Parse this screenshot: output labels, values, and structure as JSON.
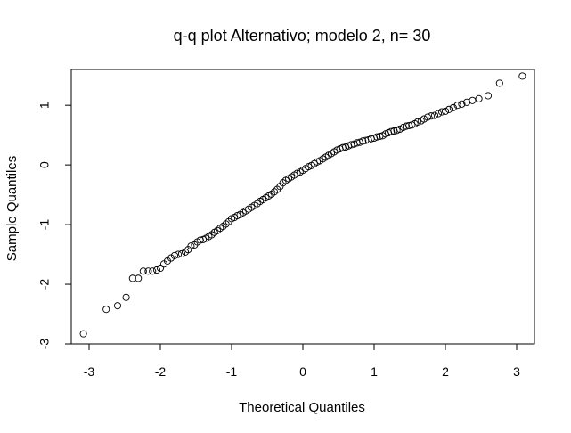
{
  "chart_data": {
    "type": "scatter",
    "title": "q-q plot Alternativo; modelo 2, n= 30",
    "xlabel": "Theoretical Quantiles",
    "ylabel": "Sample Quantiles",
    "xlim": [
      -3.25,
      3.25
    ],
    "ylim": [
      -3.0,
      1.6
    ],
    "xticks": [
      -3,
      -2,
      -1,
      0,
      1,
      2,
      3
    ],
    "yticks": [
      -3,
      -2,
      -1,
      0,
      1
    ],
    "xtick_labels": [
      "-3",
      "-2",
      "-1",
      "0",
      "1",
      "2",
      "3"
    ],
    "ytick_labels": [
      "-3",
      "-2",
      "-1",
      "0",
      "1"
    ],
    "grid": false,
    "marker": "open-circle",
    "points": [
      [
        -3.08,
        -2.83
      ],
      [
        -2.76,
        -2.42
      ],
      [
        -2.6,
        -2.36
      ],
      [
        -2.48,
        -2.22
      ],
      [
        -2.39,
        -1.9
      ],
      [
        -2.31,
        -1.9
      ],
      [
        -2.24,
        -1.78
      ],
      [
        -2.17,
        -1.78
      ],
      [
        -2.11,
        -1.78
      ],
      [
        -2.05,
        -1.76
      ],
      [
        -2.0,
        -1.73
      ],
      [
        -1.95,
        -1.66
      ],
      [
        -1.9,
        -1.61
      ],
      [
        -1.85,
        -1.56
      ],
      [
        -1.8,
        -1.52
      ],
      [
        -1.75,
        -1.5
      ],
      [
        -1.7,
        -1.49
      ],
      [
        -1.65,
        -1.46
      ],
      [
        -1.61,
        -1.42
      ],
      [
        -1.57,
        -1.36
      ],
      [
        -1.52,
        -1.34
      ],
      [
        -1.48,
        -1.29
      ],
      [
        -1.44,
        -1.26
      ],
      [
        -1.4,
        -1.25
      ],
      [
        -1.36,
        -1.23
      ],
      [
        -1.32,
        -1.2
      ],
      [
        -1.28,
        -1.17
      ],
      [
        -1.24,
        -1.13
      ],
      [
        -1.2,
        -1.1
      ],
      [
        -1.16,
        -1.06
      ],
      [
        -1.12,
        -1.03
      ],
      [
        -1.08,
        -0.99
      ],
      [
        -1.04,
        -0.95
      ],
      [
        -1.0,
        -0.9
      ],
      [
        -0.96,
        -0.88
      ],
      [
        -0.92,
        -0.85
      ],
      [
        -0.88,
        -0.83
      ],
      [
        -0.84,
        -0.8
      ],
      [
        -0.8,
        -0.77
      ],
      [
        -0.76,
        -0.74
      ],
      [
        -0.72,
        -0.71
      ],
      [
        -0.68,
        -0.68
      ],
      [
        -0.64,
        -0.65
      ],
      [
        -0.6,
        -0.61
      ],
      [
        -0.56,
        -0.58
      ],
      [
        -0.52,
        -0.55
      ],
      [
        -0.48,
        -0.52
      ],
      [
        -0.44,
        -0.49
      ],
      [
        -0.4,
        -0.45
      ],
      [
        -0.36,
        -0.41
      ],
      [
        -0.32,
        -0.36
      ],
      [
        -0.28,
        -0.3
      ],
      [
        -0.24,
        -0.26
      ],
      [
        -0.2,
        -0.23
      ],
      [
        -0.16,
        -0.2
      ],
      [
        -0.12,
        -0.17
      ],
      [
        -0.08,
        -0.14
      ],
      [
        -0.04,
        -0.12
      ],
      [
        0.0,
        -0.09
      ],
      [
        0.04,
        -0.06
      ],
      [
        0.08,
        -0.03
      ],
      [
        0.12,
        -0.01
      ],
      [
        0.16,
        0.02
      ],
      [
        0.2,
        0.05
      ],
      [
        0.24,
        0.07
      ],
      [
        0.28,
        0.1
      ],
      [
        0.32,
        0.13
      ],
      [
        0.36,
        0.16
      ],
      [
        0.4,
        0.19
      ],
      [
        0.44,
        0.22
      ],
      [
        0.48,
        0.25
      ],
      [
        0.52,
        0.27
      ],
      [
        0.56,
        0.29
      ],
      [
        0.6,
        0.3
      ],
      [
        0.64,
        0.32
      ],
      [
        0.68,
        0.34
      ],
      [
        0.72,
        0.35
      ],
      [
        0.76,
        0.37
      ],
      [
        0.8,
        0.38
      ],
      [
        0.84,
        0.4
      ],
      [
        0.88,
        0.41
      ],
      [
        0.92,
        0.42
      ],
      [
        0.96,
        0.44
      ],
      [
        1.0,
        0.45
      ],
      [
        1.04,
        0.47
      ],
      [
        1.08,
        0.48
      ],
      [
        1.12,
        0.49
      ],
      [
        1.16,
        0.52
      ],
      [
        1.2,
        0.54
      ],
      [
        1.24,
        0.56
      ],
      [
        1.28,
        0.57
      ],
      [
        1.32,
        0.58
      ],
      [
        1.36,
        0.6
      ],
      [
        1.41,
        0.63
      ],
      [
        1.45,
        0.65
      ],
      [
        1.49,
        0.66
      ],
      [
        1.53,
        0.67
      ],
      [
        1.57,
        0.69
      ],
      [
        1.61,
        0.72
      ],
      [
        1.66,
        0.74
      ],
      [
        1.7,
        0.77
      ],
      [
        1.75,
        0.8
      ],
      [
        1.8,
        0.82
      ],
      [
        1.85,
        0.83
      ],
      [
        1.9,
        0.86
      ],
      [
        1.95,
        0.89
      ],
      [
        2.0,
        0.9
      ],
      [
        2.05,
        0.93
      ],
      [
        2.11,
        0.96
      ],
      [
        2.17,
        1.0
      ],
      [
        2.23,
        1.02
      ],
      [
        2.3,
        1.05
      ],
      [
        2.38,
        1.08
      ],
      [
        2.47,
        1.11
      ],
      [
        2.6,
        1.16
      ],
      [
        2.76,
        1.37
      ],
      [
        3.08,
        1.49
      ]
    ]
  }
}
